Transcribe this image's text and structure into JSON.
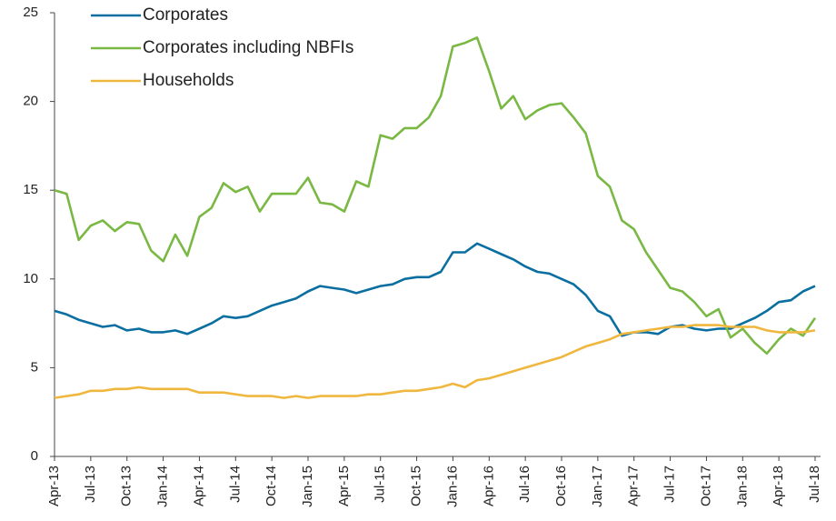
{
  "chart_data": {
    "type": "line",
    "categories": [
      "Apr-13",
      null,
      null,
      "Jul-13",
      null,
      null,
      "Oct-13",
      null,
      null,
      "Jan-14",
      null,
      null,
      "Apr-14",
      null,
      null,
      "Jul-14",
      null,
      null,
      "Oct-14",
      null,
      null,
      "Jan-15",
      null,
      null,
      "Apr-15",
      null,
      null,
      "Jul-15",
      null,
      null,
      "Oct-15",
      null,
      null,
      "Jan-16",
      null,
      null,
      "Apr-16",
      null,
      null,
      "Jul-16",
      null,
      null,
      "Oct-16",
      null,
      null,
      "Jan-17",
      null,
      null,
      "Apr-17",
      null,
      null,
      "Jul-17",
      null,
      null,
      "Oct-17",
      null,
      null,
      "Jan-18",
      null,
      null,
      "Apr-18",
      null,
      null,
      "Jul-18"
    ],
    "series": [
      {
        "name": "Corporates",
        "color": "#0a6fa0",
        "values": [
          8.2,
          8.0,
          7.7,
          7.5,
          7.3,
          7.4,
          7.1,
          7.2,
          7.0,
          7.0,
          7.1,
          6.9,
          7.2,
          7.5,
          7.9,
          7.8,
          7.9,
          8.2,
          8.5,
          8.7,
          8.9,
          9.3,
          9.6,
          9.5,
          9.4,
          9.2,
          9.4,
          9.6,
          9.7,
          10.0,
          10.1,
          10.1,
          10.4,
          11.5,
          11.5,
          12.0,
          11.7,
          11.4,
          11.1,
          10.7,
          10.4,
          10.3,
          10.0,
          9.7,
          9.1,
          8.2,
          7.9,
          6.8,
          7.0,
          7.0,
          6.9,
          7.3,
          7.4,
          7.2,
          7.1,
          7.2,
          7.2,
          7.5,
          7.8,
          8.2,
          8.7,
          8.8,
          9.3,
          9.6
        ]
      },
      {
        "name": "Corporates including NBFIs",
        "color": "#7ab844",
        "values": [
          15.0,
          14.8,
          12.2,
          13.0,
          13.3,
          12.7,
          13.2,
          13.1,
          11.6,
          11.0,
          12.5,
          11.3,
          13.5,
          14.0,
          15.4,
          14.9,
          15.2,
          13.8,
          14.8,
          14.8,
          14.8,
          15.7,
          14.3,
          14.2,
          13.8,
          15.5,
          15.2,
          18.1,
          17.9,
          18.5,
          18.5,
          19.1,
          20.3,
          23.1,
          23.3,
          23.6,
          21.7,
          19.6,
          20.3,
          19.0,
          19.5,
          19.8,
          19.9,
          19.1,
          18.2,
          15.8,
          15.2,
          13.3,
          12.8,
          11.5,
          10.5,
          9.5,
          9.3,
          8.7,
          7.9,
          8.3,
          6.7,
          7.2,
          6.4,
          5.8,
          6.6,
          7.2,
          6.8,
          7.8
        ]
      },
      {
        "name": "Households",
        "color": "#f0b73e",
        "values": [
          3.3,
          3.4,
          3.5,
          3.7,
          3.7,
          3.8,
          3.8,
          3.9,
          3.8,
          3.8,
          3.8,
          3.8,
          3.6,
          3.6,
          3.6,
          3.5,
          3.4,
          3.4,
          3.4,
          3.3,
          3.4,
          3.3,
          3.4,
          3.4,
          3.4,
          3.4,
          3.5,
          3.5,
          3.6,
          3.7,
          3.7,
          3.8,
          3.9,
          4.1,
          3.9,
          4.3,
          4.4,
          4.6,
          4.8,
          5.0,
          5.2,
          5.4,
          5.6,
          5.9,
          6.2,
          6.4,
          6.6,
          6.9,
          7.0,
          7.1,
          7.2,
          7.3,
          7.3,
          7.4,
          7.4,
          7.4,
          7.3,
          7.3,
          7.3,
          7.1,
          7.0,
          7.0,
          7.0,
          7.1
        ]
      }
    ],
    "ylim": [
      0,
      25
    ],
    "yticks": [
      0,
      5,
      10,
      15,
      20,
      25
    ],
    "grid": false,
    "legend": "top-left"
  }
}
